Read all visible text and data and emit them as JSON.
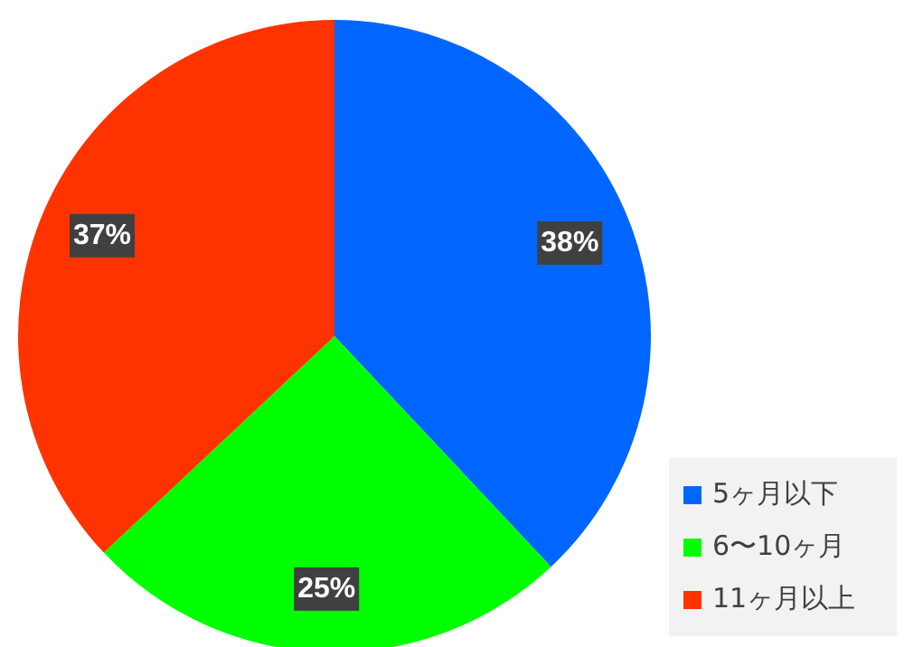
{
  "chart_data": {
    "type": "pie",
    "categories": [
      "5ヶ月以下",
      "6〜10ヶ月",
      "11ヶ月以上"
    ],
    "values": [
      38,
      25,
      37
    ],
    "colors": [
      "#0066ff",
      "#00ff00",
      "#ff3300"
    ],
    "value_labels": [
      "38%",
      "25%",
      "37%"
    ],
    "legend": "bottom right"
  }
}
